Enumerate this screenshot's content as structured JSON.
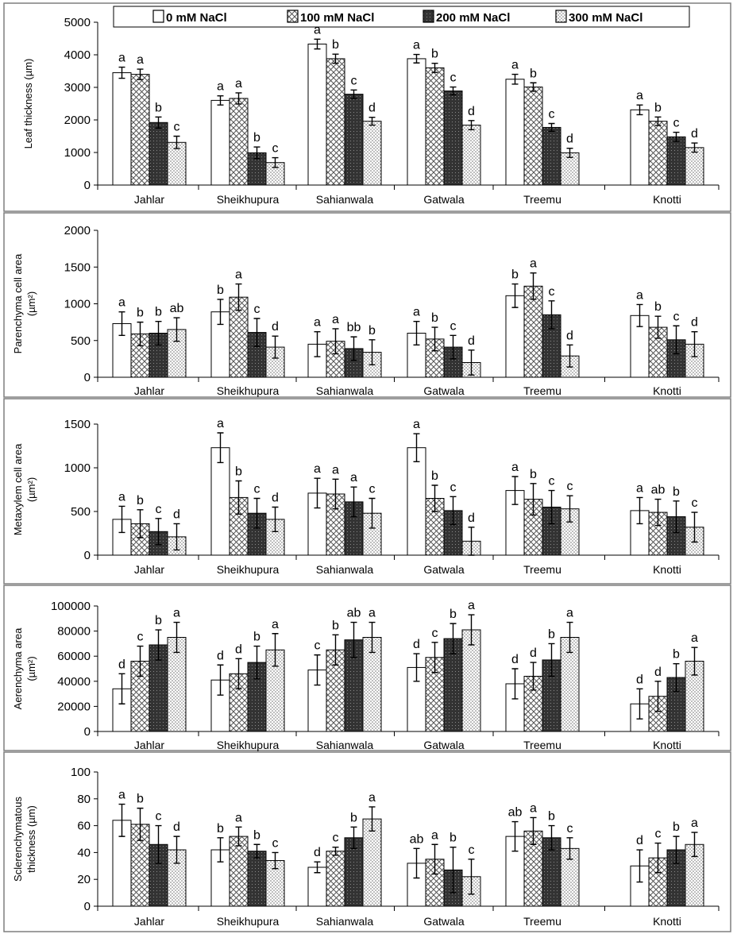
{
  "legend": [
    "0 mM NaCl",
    "100 mM NaCl",
    "200 mM NaCl",
    "300 mM NaCl"
  ],
  "chart_data": [
    {
      "type": "bar",
      "ylabel": [
        "Leaf thickness (µm)"
      ],
      "ylim": [
        0,
        5000
      ],
      "yticks": [
        0,
        1000,
        2000,
        3000,
        4000,
        5000
      ],
      "categories": [
        "Jahlar",
        "Sheikhupura",
        "Sahianwala",
        "Gatwala",
        "Treemu",
        "Knotti"
      ],
      "series": [
        {
          "name": "0 mM NaCl",
          "values": [
            3450,
            2600,
            4330,
            3880,
            3250,
            2310
          ],
          "errors": [
            170,
            140,
            150,
            130,
            150,
            150
          ],
          "letters": [
            "a",
            "a",
            "a",
            "a",
            "a",
            "a"
          ]
        },
        {
          "name": "100 mM NaCl",
          "values": [
            3400,
            2660,
            3880,
            3600,
            3010,
            1960
          ],
          "errors": [
            160,
            170,
            140,
            140,
            130,
            130
          ],
          "letters": [
            "a",
            "a",
            "b",
            "b",
            "b",
            "b"
          ]
        },
        {
          "name": "200 mM NaCl",
          "values": [
            1920,
            990,
            2790,
            2890,
            1770,
            1480
          ],
          "errors": [
            170,
            180,
            130,
            120,
            120,
            140
          ],
          "letters": [
            "b",
            "b",
            "c",
            "c",
            "c",
            "c"
          ]
        },
        {
          "name": "300 mM NaCl",
          "values": [
            1310,
            690,
            1960,
            1840,
            990,
            1150
          ],
          "errors": [
            190,
            150,
            120,
            140,
            140,
            140
          ],
          "letters": [
            "c",
            "c",
            "d",
            "d",
            "d",
            "d"
          ]
        }
      ]
    },
    {
      "type": "bar",
      "ylabel": [
        "Parenchyma cell area",
        "(µm²)"
      ],
      "ylim": [
        0,
        2000
      ],
      "yticks": [
        0,
        500,
        1000,
        1500,
        2000
      ],
      "categories": [
        "Jahlar",
        "Sheikhupura",
        "Sahianwala",
        "Gatwala",
        "Treemu",
        "Knotti"
      ],
      "series": [
        {
          "name": "0 mM NaCl",
          "values": [
            730,
            890,
            450,
            600,
            1110,
            840
          ],
          "errors": [
            160,
            170,
            170,
            160,
            160,
            150
          ],
          "letters": [
            "a",
            "b",
            "a",
            "a",
            "b",
            "a"
          ]
        },
        {
          "name": "100 mM NaCl",
          "values": [
            590,
            1090,
            490,
            520,
            1240,
            680
          ],
          "errors": [
            160,
            180,
            170,
            160,
            180,
            150
          ],
          "letters": [
            "b",
            "a",
            "a",
            "b",
            "a",
            "b"
          ]
        },
        {
          "name": "200 mM NaCl",
          "values": [
            600,
            610,
            390,
            410,
            850,
            510
          ],
          "errors": [
            160,
            190,
            160,
            160,
            190,
            190
          ],
          "letters": [
            "b",
            "c",
            "bb",
            "c",
            "c",
            "c"
          ]
        },
        {
          "name": "300 mM NaCl",
          "values": [
            650,
            410,
            340,
            200,
            290,
            450
          ],
          "errors": [
            160,
            150,
            170,
            170,
            150,
            170
          ],
          "letters": [
            "ab",
            "d",
            "b",
            "d",
            "d",
            "d"
          ]
        }
      ]
    },
    {
      "type": "bar",
      "ylabel": [
        "Metaxylem cell area",
        "(µm²)"
      ],
      "ylim": [
        0,
        1500
      ],
      "yticks": [
        0,
        500,
        1000,
        1500
      ],
      "categories": [
        "Jahlar",
        "Sheikhupura",
        "Sahianwala",
        "Gatwala",
        "Treemu",
        "Knotti"
      ],
      "series": [
        {
          "name": "0 mM NaCl",
          "values": [
            410,
            1230,
            710,
            1230,
            740,
            510
          ],
          "errors": [
            150,
            170,
            170,
            160,
            160,
            150
          ],
          "letters": [
            "a",
            "a",
            "a",
            "a",
            "a",
            "a"
          ]
        },
        {
          "name": "100 mM NaCl",
          "values": [
            360,
            660,
            700,
            650,
            640,
            490
          ],
          "errors": [
            160,
            190,
            170,
            150,
            180,
            150
          ],
          "letters": [
            "b",
            "b",
            "a",
            "b",
            "b",
            "ab"
          ]
        },
        {
          "name": "200 mM NaCl",
          "values": [
            270,
            480,
            610,
            510,
            550,
            440
          ],
          "errors": [
            150,
            170,
            170,
            160,
            190,
            180
          ],
          "letters": [
            "c",
            "c",
            "a",
            "c",
            "c",
            "b"
          ]
        },
        {
          "name": "300 mM NaCl",
          "values": [
            210,
            410,
            480,
            160,
            530,
            320
          ],
          "errors": [
            150,
            140,
            170,
            160,
            150,
            170
          ],
          "letters": [
            "d",
            "d",
            "c",
            "d",
            "c",
            "c"
          ]
        }
      ]
    },
    {
      "type": "bar",
      "ylabel": [
        "Aerenchyma area",
        "(µm²)"
      ],
      "ylim": [
        0,
        100000
      ],
      "yticks": [
        0,
        20000,
        40000,
        60000,
        80000,
        100000
      ],
      "categories": [
        "Jahlar",
        "Sheikhupura",
        "Sahianwala",
        "Gatwala",
        "Treemu",
        "Knotti"
      ],
      "series": [
        {
          "name": "0 mM NaCl",
          "values": [
            34000,
            41000,
            49000,
            51000,
            38000,
            22000
          ],
          "errors": [
            12000,
            12000,
            12000,
            11000,
            12000,
            12000
          ],
          "letters": [
            "d",
            "d",
            "c",
            "d",
            "d",
            "d"
          ]
        },
        {
          "name": "100 mM NaCl",
          "values": [
            56000,
            46000,
            65000,
            59000,
            44000,
            28000
          ],
          "errors": [
            12000,
            12000,
            12000,
            12000,
            11000,
            12000
          ],
          "letters": [
            "c",
            "d",
            "b",
            "c",
            "d",
            "d"
          ]
        },
        {
          "name": "200 mM NaCl",
          "values": [
            69000,
            55000,
            73000,
            74000,
            57000,
            43000
          ],
          "errors": [
            12000,
            13000,
            14000,
            12000,
            13000,
            11000
          ],
          "letters": [
            "b",
            "b",
            "ab",
            "b",
            "b",
            "b"
          ]
        },
        {
          "name": "300 mM NaCl",
          "values": [
            75000,
            65000,
            75000,
            81000,
            75000,
            56000
          ],
          "errors": [
            12000,
            13000,
            12000,
            12000,
            12000,
            11000
          ],
          "letters": [
            "a",
            "a",
            "a",
            "a",
            "a",
            "a"
          ]
        }
      ]
    },
    {
      "type": "bar",
      "ylabel": [
        "Sclerenchymatous",
        "thickness (µm)"
      ],
      "ylim": [
        0,
        100
      ],
      "yticks": [
        0,
        20,
        40,
        60,
        80,
        100
      ],
      "categories": [
        "Jahlar",
        "Sheikhupura",
        "Sahianwala",
        "Gatwala",
        "Treemu",
        "Knotti"
      ],
      "series": [
        {
          "name": "0 mM NaCl",
          "values": [
            64,
            42,
            29,
            32,
            52,
            30
          ],
          "errors": [
            12,
            9,
            4,
            11,
            11,
            12
          ],
          "letters": [
            "a",
            "b",
            "d",
            "ab",
            "ab",
            "d"
          ]
        },
        {
          "name": "100 mM NaCl",
          "values": [
            61,
            52,
            41,
            35,
            56,
            36
          ],
          "errors": [
            12,
            7,
            3,
            11,
            10,
            11
          ],
          "letters": [
            "b",
            "a",
            "c",
            "a",
            "a",
            "c"
          ]
        },
        {
          "name": "200 mM NaCl",
          "values": [
            46,
            41,
            51,
            27,
            51,
            42
          ],
          "errors": [
            14,
            5,
            8,
            17,
            9,
            10
          ],
          "letters": [
            "c",
            "b",
            "b",
            "b",
            "b",
            "b"
          ]
        },
        {
          "name": "300 mM NaCl",
          "values": [
            42,
            34,
            65,
            22,
            43,
            46
          ],
          "errors": [
            10,
            6,
            9,
            13,
            8,
            9
          ],
          "letters": [
            "d",
            "c",
            "a",
            "c",
            "c",
            "a"
          ]
        }
      ]
    }
  ]
}
